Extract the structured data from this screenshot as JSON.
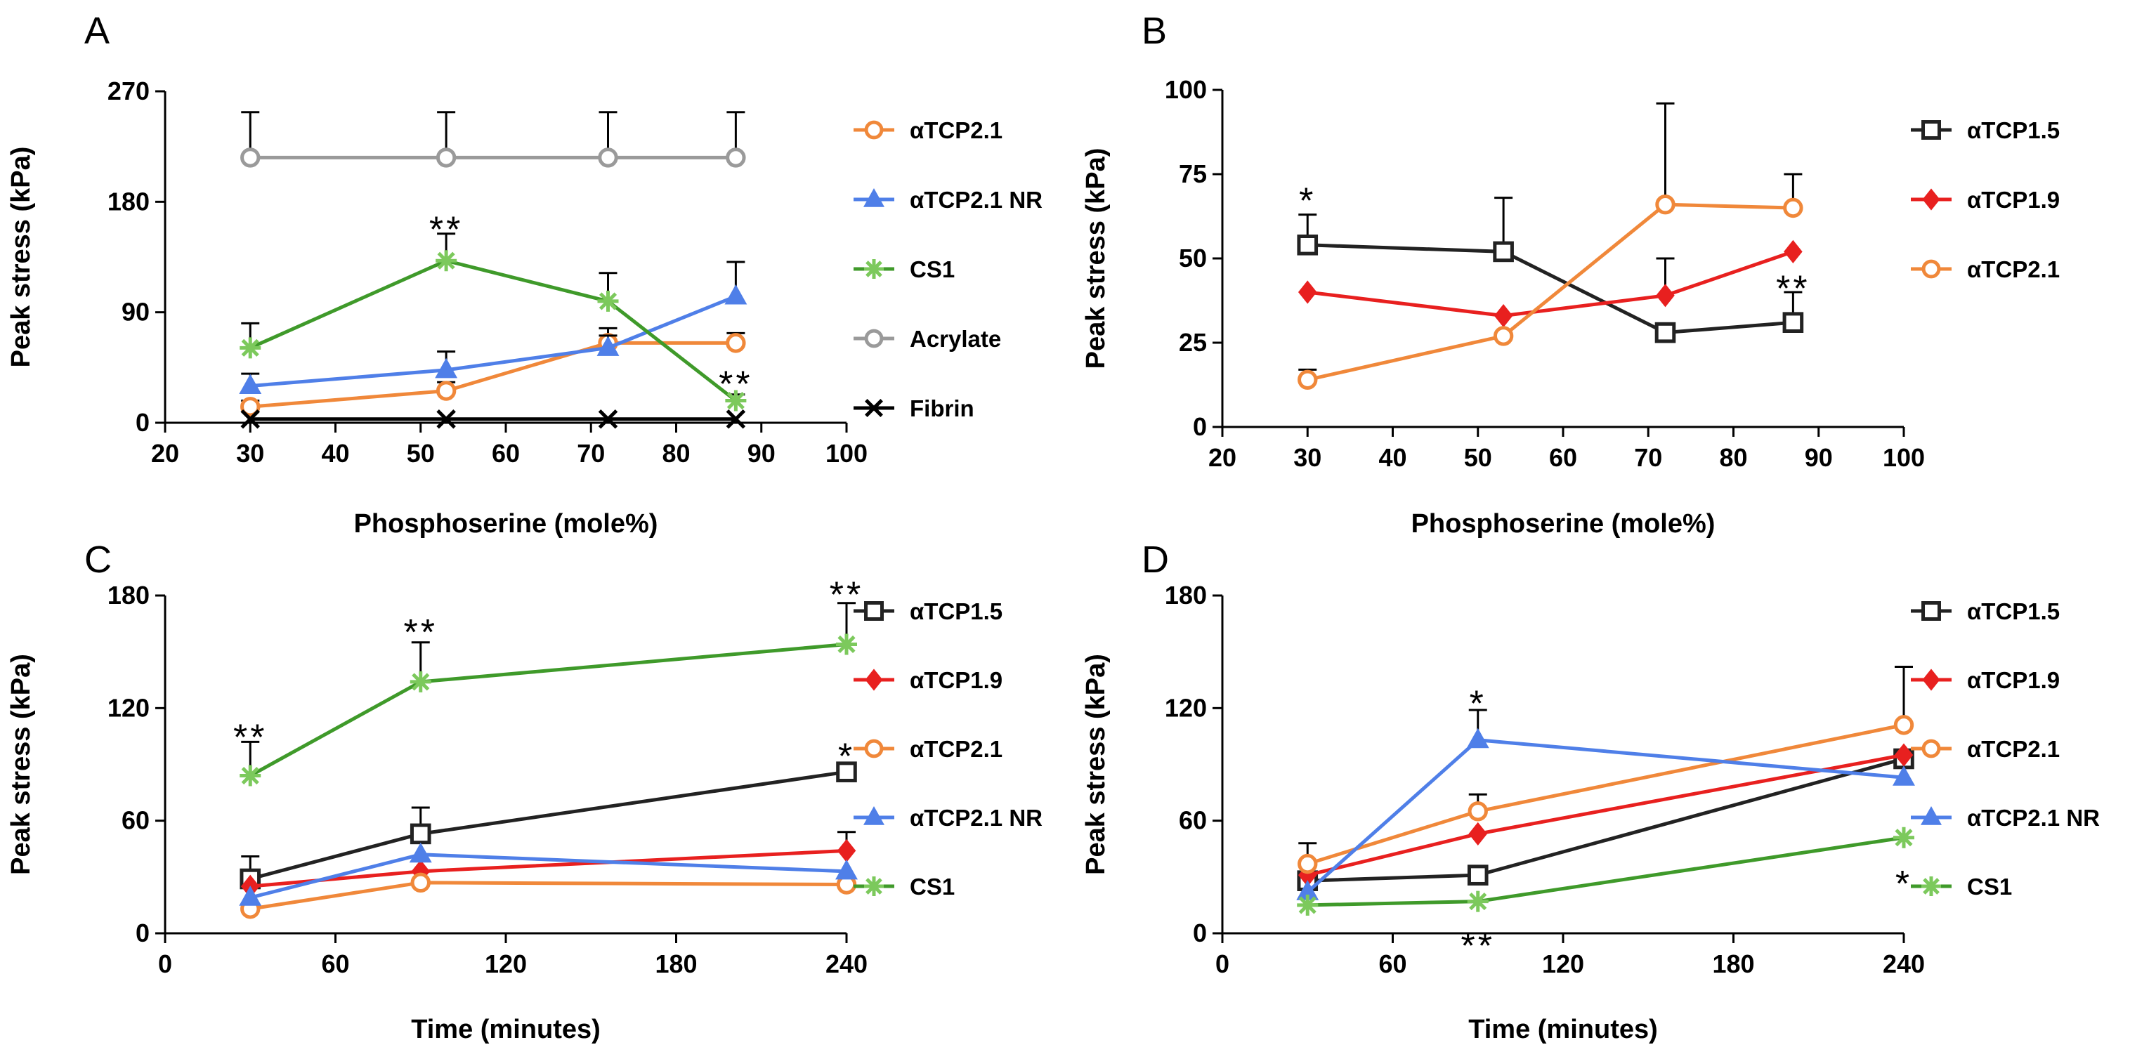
{
  "colors": {
    "aTCP2.1": "#F0883A",
    "aTCP2.1 NR": "#4F7FE8",
    "CS1": "#3F9A2A",
    "CS1_marker": "#7CC95C",
    "Acrylate": "#9A9A9A",
    "Fibrin": "#000000",
    "aTCP1.5": "#222222",
    "aTCP1.9": "#E8201F"
  },
  "chart_data": [
    {
      "panel": "A",
      "type": "line",
      "xlabel": "Phosphoserine (mole%)",
      "ylabel": "Peak stress (kPa)",
      "xlim": [
        20,
        100
      ],
      "ylim": [
        0,
        270
      ],
      "xticks": [
        "20",
        "30",
        "40",
        "50",
        "60",
        "70",
        "80",
        "90",
        "100"
      ],
      "yticks": [
        "0",
        "90",
        "180",
        "270"
      ],
      "legend_position": "right",
      "series": [
        {
          "name": "αTCP2.1",
          "key": "aTCP2.1",
          "marker": "circle",
          "x": [
            30,
            53,
            72,
            87
          ],
          "values": [
            13,
            26,
            65,
            65
          ],
          "err": [
            5,
            7,
            12,
            8
          ]
        },
        {
          "name": "αTCP2.1 NR",
          "key": "aTCP2.1 NR",
          "marker": "triangle",
          "x": [
            30,
            53,
            72,
            87
          ],
          "values": [
            30,
            43,
            61,
            103
          ],
          "err": [
            10,
            15,
            10,
            28
          ]
        },
        {
          "name": "CS1",
          "key": "CS1",
          "marker": "star",
          "x": [
            30,
            53,
            72,
            87
          ],
          "values": [
            61,
            132,
            99,
            18
          ],
          "err": [
            20,
            22,
            23,
            5
          ]
        },
        {
          "name": "Acrylate",
          "key": "Acrylate",
          "marker": "circle",
          "x": [
            30,
            53,
            72,
            87
          ],
          "values": [
            216,
            216,
            216,
            216
          ],
          "err": [
            37,
            37,
            37,
            37
          ]
        },
        {
          "name": "Fibrin",
          "key": "Fibrin",
          "marker": "x",
          "x": [
            30,
            53,
            72,
            87
          ],
          "values": [
            3,
            3,
            3,
            3
          ],
          "err": [
            0,
            0,
            0,
            0
          ]
        }
      ],
      "annotations": [
        {
          "text": "**",
          "x": 53,
          "y": 160
        },
        {
          "text": "**",
          "x": 87,
          "y": 34
        }
      ]
    },
    {
      "panel": "B",
      "type": "line",
      "xlabel": "Phosphoserine (mole%)",
      "ylabel": "Peak stress (kPa)",
      "xlim": [
        20,
        100
      ],
      "ylim": [
        0,
        100
      ],
      "xticks": [
        "20",
        "30",
        "40",
        "50",
        "60",
        "70",
        "80",
        "90",
        "100"
      ],
      "yticks": [
        "0",
        "25",
        "50",
        "75",
        "100"
      ],
      "legend_position": "right",
      "series": [
        {
          "name": "αTCP1.5",
          "key": "aTCP1.5",
          "marker": "square",
          "x": [
            30,
            53,
            72,
            87
          ],
          "values": [
            54,
            52,
            28,
            31
          ],
          "err": [
            9,
            16,
            0,
            9
          ]
        },
        {
          "name": "αTCP1.9",
          "key": "aTCP1.9",
          "marker": "diamond",
          "x": [
            30,
            53,
            72,
            87
          ],
          "values": [
            40,
            33,
            39,
            52
          ],
          "err": [
            0,
            0,
            11,
            0
          ]
        },
        {
          "name": "αTCP2.1",
          "key": "aTCP2.1",
          "marker": "circle",
          "x": [
            30,
            53,
            72,
            87
          ],
          "values": [
            14,
            27,
            66,
            65
          ],
          "err": [
            3,
            0,
            30,
            10
          ]
        }
      ],
      "annotations": [
        {
          "text": "*",
          "x": 30,
          "y": 68
        },
        {
          "text": "**",
          "x": 87,
          "y": 42
        }
      ]
    },
    {
      "panel": "C",
      "type": "line",
      "xlabel": "Time (minutes)",
      "ylabel": "Peak stress (kPa)",
      "xlim": [
        0,
        240
      ],
      "ylim": [
        0,
        180
      ],
      "xticks": [
        "0",
        "60",
        "120",
        "180",
        "240"
      ],
      "yticks": [
        "0",
        "60",
        "120",
        "180"
      ],
      "legend_position": "right",
      "series": [
        {
          "name": "αTCP1.5",
          "key": "aTCP1.5",
          "marker": "square",
          "x": [
            30,
            90,
            240
          ],
          "values": [
            29,
            53,
            86
          ],
          "err": [
            12,
            14,
            0
          ]
        },
        {
          "name": "αTCP1.9",
          "key": "aTCP1.9",
          "marker": "diamond",
          "x": [
            30,
            90,
            240
          ],
          "values": [
            25,
            33,
            44
          ],
          "err": [
            0,
            0,
            10
          ]
        },
        {
          "name": "αTCP2.1",
          "key": "aTCP2.1",
          "marker": "circle",
          "x": [
            30,
            90,
            240
          ],
          "values": [
            13,
            27,
            26
          ],
          "err": [
            0,
            0,
            0
          ]
        },
        {
          "name": "αTCP2.1 NR",
          "key": "aTCP2.1 NR",
          "marker": "triangle",
          "x": [
            30,
            90,
            240
          ],
          "values": [
            19,
            42,
            33
          ],
          "err": [
            0,
            0,
            0
          ]
        },
        {
          "name": "CS1",
          "key": "CS1",
          "marker": "star",
          "x": [
            30,
            90,
            240
          ],
          "values": [
            84,
            134,
            154
          ],
          "err": [
            18,
            21,
            22
          ]
        }
      ],
      "annotations": [
        {
          "text": "**",
          "x": 30,
          "y": 106
        },
        {
          "text": "**",
          "x": 90,
          "y": 162
        },
        {
          "text": "**",
          "x": 240,
          "y": 182
        },
        {
          "text": "*",
          "x": 240,
          "y": 96
        }
      ]
    },
    {
      "panel": "D",
      "type": "line",
      "xlabel": "Time (minutes)",
      "ylabel": "Peak stress (kPa)",
      "xlim": [
        0,
        240
      ],
      "ylim": [
        0,
        180
      ],
      "xticks": [
        "0",
        "60",
        "120",
        "180",
        "240"
      ],
      "yticks": [
        "0",
        "60",
        "120",
        "180"
      ],
      "legend_position": "right",
      "series": [
        {
          "name": "αTCP1.5",
          "key": "aTCP1.5",
          "marker": "square",
          "x": [
            30,
            90,
            240
          ],
          "values": [
            28,
            31,
            93
          ],
          "err": [
            20,
            0,
            0
          ]
        },
        {
          "name": "αTCP1.9",
          "key": "aTCP1.9",
          "marker": "diamond",
          "x": [
            30,
            90,
            240
          ],
          "values": [
            31,
            53,
            95
          ],
          "err": [
            0,
            0,
            0
          ]
        },
        {
          "name": "αTCP2.1",
          "key": "aTCP2.1",
          "marker": "circle",
          "x": [
            30,
            90,
            240
          ],
          "values": [
            37,
            65,
            111
          ],
          "err": [
            0,
            9,
            31
          ]
        },
        {
          "name": "αTCP2.1 NR",
          "key": "aTCP2.1 NR",
          "marker": "triangle",
          "x": [
            30,
            90,
            240
          ],
          "values": [
            22,
            103,
            83
          ],
          "err": [
            0,
            16,
            0
          ]
        },
        {
          "name": "CS1",
          "key": "CS1",
          "marker": "star",
          "x": [
            30,
            90,
            240
          ],
          "values": [
            15,
            17,
            51
          ],
          "err": [
            0,
            0,
            0
          ]
        }
      ],
      "annotations": [
        {
          "text": "*",
          "x": 90,
          "y": 124
        },
        {
          "text": "**",
          "x": 90,
          "y": -5
        },
        {
          "text": "*",
          "x": 240,
          "y": 28
        }
      ]
    }
  ]
}
